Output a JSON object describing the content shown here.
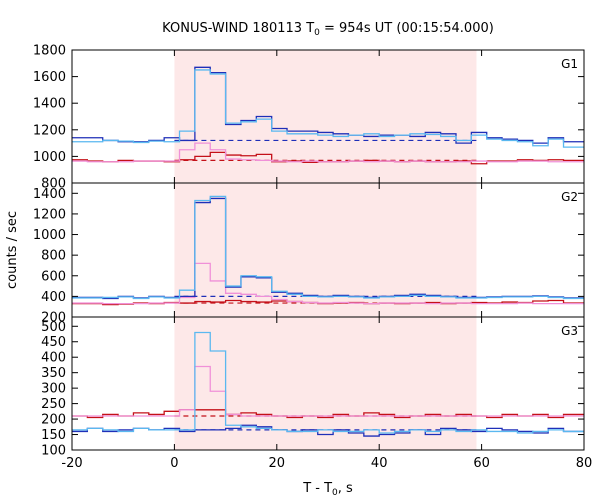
{
  "chart_data": {
    "type": "line",
    "title": {
      "main": "KONUS-WIND 180113 T",
      "sub": "0",
      "rest": " = 954s UT (00:15:54.000)"
    },
    "xlabel": {
      "main": "T - T",
      "sub": "0",
      "rest": ", s"
    },
    "ylabel": "counts / sec",
    "xlim": [
      -20,
      80
    ],
    "x_ticks": [
      -20,
      0,
      20,
      40,
      60,
      80
    ],
    "shaded_interval": [
      0,
      59
    ],
    "colors": {
      "shade": "#fde8e8",
      "dark_blue": "#1f2fb8",
      "light_blue": "#5ab8f0",
      "dark_red": "#c41018",
      "pink": "#f090d8"
    },
    "panels": [
      {
        "label": "G1",
        "ylim": [
          800,
          1800
        ],
        "y_ticks": [
          800,
          1000,
          1200,
          1400,
          1600,
          1800
        ],
        "background_levels": [
          {
            "color": "dark_blue",
            "value": 1120
          },
          {
            "color": "dark_red",
            "value": 970
          }
        ],
        "series": [
          {
            "color": "dark_red",
            "edges": [
              -20,
              -17,
              -14,
              -11,
              -8,
              -5,
              -2,
              1,
              4,
              7,
              10,
              13,
              16,
              19,
              22,
              25,
              28,
              31,
              34,
              37,
              40,
              43,
              46,
              49,
              52,
              55,
              58,
              61,
              64,
              67,
              70,
              73,
              76,
              80
            ],
            "values": [
              975,
              965,
              960,
              970,
              965,
              965,
              960,
              975,
              1000,
              1030,
              1010,
              1005,
              1015,
              960,
              965,
              955,
              960,
              960,
              965,
              970,
              965,
              960,
              965,
              960,
              960,
              965,
              945,
              965,
              965,
              975,
              970,
              975,
              970
            ]
          },
          {
            "color": "pink",
            "edges": [
              -20,
              -17,
              -14,
              -11,
              -8,
              -5,
              -2,
              1,
              4,
              7,
              10,
              13,
              16,
              19,
              22,
              25,
              28,
              31,
              34,
              37,
              40,
              43,
              46,
              49,
              52,
              55,
              58,
              61,
              64,
              67,
              70,
              73,
              76,
              80
            ],
            "values": [
              965,
              960,
              960,
              960,
              965,
              965,
              965,
              1050,
              1100,
              1050,
              980,
              975,
              970,
              965,
              960,
              965,
              960,
              960,
              965,
              960,
              965,
              960,
              965,
              960,
              960,
              960,
              965,
              960,
              960,
              965,
              965,
              960,
              960
            ]
          },
          {
            "color": "dark_blue",
            "edges": [
              -20,
              -14,
              -11,
              -8,
              -5,
              -2,
              1,
              4,
              7,
              10,
              13,
              16,
              19,
              22,
              28,
              31,
              34,
              37,
              40,
              43,
              46,
              49,
              52,
              55,
              58,
              61,
              64,
              67,
              70,
              73,
              76,
              80
            ],
            "values": [
              1140,
              1120,
              1110,
              1110,
              1120,
              1140,
              1120,
              1670,
              1630,
              1240,
              1270,
              1300,
              1210,
              1190,
              1180,
              1170,
              1160,
              1150,
              1160,
              1160,
              1150,
              1180,
              1170,
              1100,
              1180,
              1140,
              1130,
              1120,
              1100,
              1140,
              1110
            ]
          },
          {
            "color": "light_blue",
            "edges": [
              -20,
              -14,
              -11,
              -8,
              -5,
              -2,
              1,
              4,
              7,
              10,
              13,
              16,
              19,
              22,
              28,
              31,
              34,
              37,
              40,
              43,
              46,
              49,
              52,
              55,
              58,
              61,
              64,
              67,
              70,
              73,
              76,
              80
            ],
            "values": [
              1110,
              1120,
              1115,
              1105,
              1115,
              1110,
              1190,
              1650,
              1620,
              1250,
              1260,
              1280,
              1190,
              1170,
              1160,
              1150,
              1160,
              1170,
              1150,
              1160,
              1170,
              1165,
              1150,
              1120,
              1160,
              1130,
              1120,
              1110,
              1080,
              1130,
              1070
            ]
          }
        ]
      },
      {
        "label": "G2",
        "ylim": [
          200,
          1500
        ],
        "y_ticks": [
          200,
          400,
          600,
          800,
          1000,
          1200,
          1400
        ],
        "background_levels": [
          {
            "color": "dark_blue",
            "value": 400
          },
          {
            "color": "dark_red",
            "value": 335
          }
        ],
        "series": [
          {
            "color": "dark_red",
            "edges": [
              -20,
              -14,
              -11,
              -8,
              -5,
              -2,
              1,
              4,
              7,
              10,
              13,
              16,
              19,
              22,
              25,
              28,
              31,
              34,
              37,
              40,
              43,
              46,
              49,
              52,
              55,
              58,
              61,
              64,
              67,
              70,
              73,
              76,
              80
            ],
            "values": [
              330,
              320,
              325,
              335,
              330,
              340,
              335,
              350,
              345,
              360,
              350,
              345,
              355,
              350,
              340,
              330,
              335,
              340,
              330,
              335,
              330,
              335,
              340,
              330,
              335,
              340,
              335,
              345,
              340,
              355,
              360,
              335
            ]
          },
          {
            "color": "pink",
            "edges": [
              -20,
              -14,
              -11,
              -8,
              -5,
              -2,
              1,
              4,
              7,
              10,
              13,
              16,
              19,
              22,
              25,
              28,
              31,
              34,
              37,
              40,
              43,
              46,
              49,
              52,
              55,
              58,
              61,
              64,
              67,
              70,
              73,
              76,
              80
            ],
            "values": [
              335,
              330,
              330,
              330,
              335,
              335,
              390,
              720,
              550,
              430,
              420,
              400,
              370,
              350,
              340,
              335,
              340,
              335,
              330,
              335,
              335,
              335,
              330,
              335,
              335,
              330,
              330,
              330,
              335,
              330,
              330,
              330
            ]
          },
          {
            "color": "dark_blue",
            "edges": [
              -20,
              -14,
              -11,
              -8,
              -5,
              -2,
              1,
              4,
              7,
              10,
              13,
              16,
              19,
              22,
              25,
              28,
              31,
              34,
              37,
              40,
              43,
              46,
              49,
              52,
              55,
              58,
              61,
              64,
              67,
              70,
              73,
              76,
              80
            ],
            "values": [
              390,
              380,
              400,
              385,
              400,
              390,
              400,
              1310,
              1350,
              490,
              590,
              580,
              440,
              430,
              410,
              400,
              410,
              400,
              390,
              400,
              410,
              420,
              410,
              400,
              390,
              390,
              395,
              400,
              400,
              405,
              395,
              385
            ]
          },
          {
            "color": "light_blue",
            "edges": [
              -20,
              -14,
              -11,
              -8,
              -5,
              -2,
              1,
              4,
              7,
              10,
              13,
              16,
              19,
              22,
              25,
              28,
              31,
              34,
              37,
              40,
              43,
              46,
              49,
              52,
              55,
              58,
              61,
              64,
              67,
              70,
              73,
              76,
              80
            ],
            "values": [
              385,
              390,
              395,
              380,
              395,
              385,
              460,
              1330,
              1370,
              500,
              600,
              590,
              450,
              420,
              400,
              395,
              400,
              395,
              385,
              395,
              400,
              410,
              400,
              395,
              385,
              385,
              390,
              395,
              395,
              400,
              390,
              380
            ]
          }
        ]
      },
      {
        "label": "G3",
        "ylim": [
          100,
          530
        ],
        "y_ticks": [
          100,
          150,
          200,
          250,
          300,
          350,
          400,
          450,
          500
        ],
        "background_levels": [
          {
            "color": "dark_blue",
            "value": 165
          },
          {
            "color": "dark_red",
            "value": 210
          }
        ],
        "series": [
          {
            "color": "dark_red",
            "edges": [
              -20,
              -17,
              -14,
              -11,
              -8,
              -5,
              -2,
              1,
              4,
              7,
              10,
              13,
              16,
              19,
              22,
              25,
              28,
              31,
              34,
              37,
              40,
              43,
              46,
              49,
              52,
              55,
              58,
              61,
              64,
              67,
              70,
              73,
              76,
              80
            ],
            "values": [
              210,
              205,
              215,
              210,
              220,
              215,
              225,
              230,
              230,
              230,
              215,
              220,
              215,
              210,
              205,
              210,
              205,
              215,
              210,
              220,
              215,
              205,
              210,
              215,
              210,
              215,
              210,
              205,
              215,
              210,
              215,
              205,
              215
            ]
          },
          {
            "color": "pink",
            "edges": [
              -20,
              -17,
              -14,
              -11,
              -8,
              -5,
              -2,
              1,
              4,
              7,
              10,
              13,
              16,
              19,
              22,
              25,
              28,
              31,
              34,
              37,
              40,
              43,
              46,
              49,
              52,
              55,
              58,
              61,
              64,
              67,
              70,
              73,
              76,
              80
            ],
            "values": [
              210,
              210,
              210,
              210,
              210,
              210,
              210,
              230,
              370,
              290,
              215,
              210,
              210,
              210,
              210,
              210,
              210,
              210,
              210,
              210,
              210,
              210,
              210,
              210,
              210,
              210,
              210,
              210,
              210,
              210,
              210,
              210,
              210
            ]
          },
          {
            "color": "dark_blue",
            "edges": [
              -20,
              -17,
              -14,
              -11,
              -8,
              -5,
              -2,
              1,
              4,
              7,
              10,
              13,
              16,
              19,
              22,
              25,
              28,
              31,
              34,
              37,
              40,
              43,
              46,
              49,
              52,
              55,
              58,
              61,
              64,
              67,
              70,
              73,
              76,
              80
            ],
            "values": [
              160,
              170,
              160,
              165,
              170,
              165,
              170,
              160,
              165,
              165,
              170,
              180,
              175,
              165,
              160,
              165,
              150,
              165,
              155,
              145,
              150,
              155,
              165,
              150,
              170,
              165,
              160,
              170,
              165,
              160,
              155,
              170,
              160
            ]
          },
          {
            "color": "light_blue",
            "edges": [
              -20,
              -17,
              -14,
              -11,
              -8,
              -5,
              -2,
              1,
              4,
              7,
              10,
              13,
              16,
              19,
              22,
              25,
              28,
              31,
              34,
              37,
              40,
              43,
              46,
              49,
              52,
              55,
              58,
              61,
              64,
              67,
              70,
              73,
              76,
              80
            ],
            "values": [
              165,
              170,
              165,
              160,
              170,
              165,
              165,
              165,
              480,
              420,
              180,
              175,
              170,
              165,
              160,
              160,
              165,
              160,
              160,
              165,
              155,
              160,
              165,
              160,
              165,
              160,
              165,
              160,
              160,
              155,
              160,
              165,
              160
            ]
          }
        ]
      }
    ]
  }
}
